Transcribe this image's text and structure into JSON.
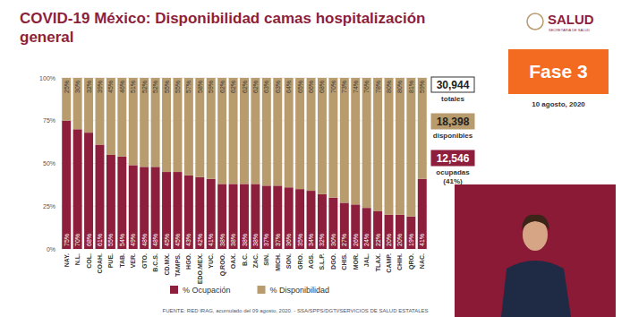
{
  "chart_data": {
    "type": "bar",
    "stacked": true,
    "data_labels": true,
    "grid": true,
    "legend": "bottom",
    "title": "COVID-19 México: Disponibilidad camas hospitalización general",
    "categories": [
      "NAY.",
      "N.L.",
      "COL.",
      "COAH.",
      "PUE.",
      "TAB.",
      "VER.",
      "GTO.",
      "B.C.S.",
      "CD.MX.",
      "TAMPS.",
      "HGO.",
      "EDO.MEX.",
      "YUC.",
      "Q.ROO.",
      "OAX.",
      "B.C.",
      "ZAC.",
      "SIN.",
      "MICH.",
      "SON.",
      "GRO.",
      "AGS.",
      "S.L.P.",
      "DGO.",
      "CHIS.",
      "MOR.",
      "JAL.",
      "TLAX.",
      "CAMP.",
      "CHIH.",
      "QRO.",
      "NAC."
    ],
    "series": [
      {
        "name": "% Ocupación",
        "color": "#8e1f3c",
        "values": [
          75,
          70,
          68,
          61,
          55,
          54,
          49,
          48,
          48,
          45,
          45,
          43,
          42,
          41,
          38,
          38,
          38,
          38,
          37,
          37,
          36,
          35,
          34,
          32,
          30,
          27,
          26,
          24,
          22,
          20,
          20,
          19,
          41
        ],
        "value_labels": [
          "75%",
          "70%",
          "68%",
          "61%",
          "55%",
          "54%",
          "49%",
          "48%",
          "48%",
          "45%",
          "45%",
          "43%",
          "42%",
          "41%",
          "38%",
          "38%",
          "38%",
          "38%",
          "37%",
          "37%",
          "36%",
          "35%",
          "34%",
          "32%",
          "30%",
          "27%",
          "26%",
          "24%",
          "22%",
          "20%",
          "20%",
          "19%",
          "41%"
        ]
      },
      {
        "name": "% Disponibilidad",
        "color": "#b89c6e",
        "values": [
          25,
          30,
          32,
          39,
          45,
          46,
          51,
          52,
          52,
          55,
          55,
          57,
          58,
          59,
          62,
          62,
          62,
          62,
          63,
          63,
          64,
          65,
          66,
          68,
          70,
          73,
          74,
          76,
          78,
          80,
          80,
          81,
          59
        ],
        "value_labels": [
          "25%",
          "30%",
          "32%",
          "39%",
          "45%",
          "46%",
          "51%",
          "52%",
          "52%",
          "55%",
          "55%",
          "57%",
          "58%",
          "59%",
          "62%",
          "62%",
          "62%",
          "62%",
          "63%",
          "63%",
          "64%",
          "65%",
          "66%",
          "68%",
          "70%",
          "73%",
          "74%",
          "76%",
          "78%",
          "80%",
          "80%",
          "81%",
          "59%"
        ]
      }
    ],
    "ylim": [
      0,
      100
    ],
    "yticks": [
      {
        "value": 0,
        "label": "0%"
      },
      {
        "value": 25,
        "label": "25%"
      },
      {
        "value": 50,
        "label": "50%"
      },
      {
        "value": 75,
        "label": "75%"
      },
      {
        "value": 100,
        "label": "100%"
      }
    ]
  },
  "logo": "SALUD",
  "logo_sub": "SECRETARÍA DE SALUD",
  "phase": "Fase 3",
  "date": "10 agosto, 2020",
  "summary": [
    {
      "value": "30,944",
      "label": "totales"
    },
    {
      "value": "18,398",
      "label": "disponibles"
    },
    {
      "value": "12,546",
      "label": "ocupadas",
      "sub": "(41%)"
    }
  ],
  "source": "FUENTE: RED IRAG, acumulado del 09 agosto, 2020. - SSA/SPPS/DGTI/SERVICIOS DE SALUD ESTATALES"
}
